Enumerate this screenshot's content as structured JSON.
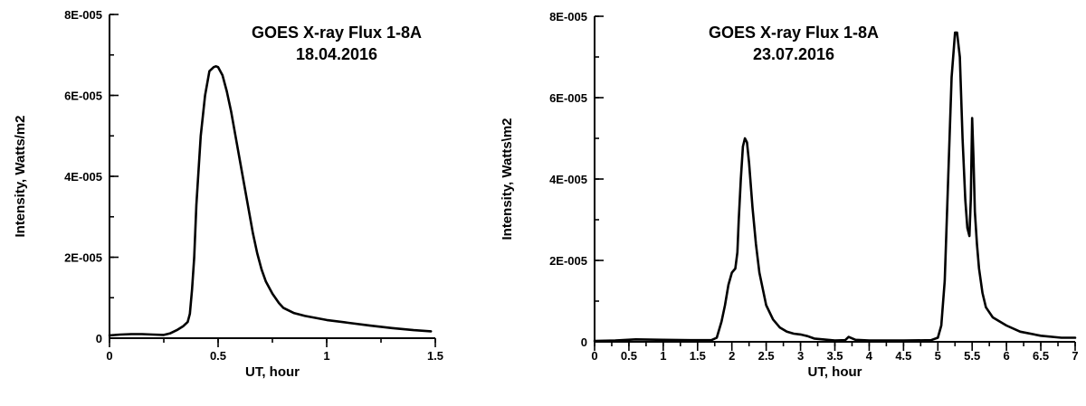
{
  "chart_data": [
    {
      "type": "line",
      "title": "GOES X-ray Flux 1-8A",
      "subtitle": "18.04.2016",
      "xlabel": "UT, hour",
      "ylabel": "Intensity, Watts/m2",
      "xlim": [
        0,
        1.5
      ],
      "ylim": [
        0,
        8e-05
      ],
      "xticks": [
        0,
        0.5,
        1,
        1.5
      ],
      "xtick_labels": [
        "0",
        "0.5",
        "1",
        "1.5"
      ],
      "x_minor_step": 0.25,
      "yticks": [
        0,
        2e-05,
        4e-05,
        6e-05,
        8e-05
      ],
      "ytick_labels": [
        "0",
        "2E-005",
        "4E-005",
        "6E-005",
        "8E-005"
      ],
      "y_minor_step": 1e-05,
      "grid": false,
      "series": [
        {
          "x": [
            0,
            0.05,
            0.1,
            0.15,
            0.2,
            0.25,
            0.28,
            0.31,
            0.34,
            0.36,
            0.37,
            0.38,
            0.39,
            0.4,
            0.42,
            0.44,
            0.46,
            0.48,
            0.49,
            0.5,
            0.52,
            0.54,
            0.56,
            0.58,
            0.6,
            0.62,
            0.64,
            0.66,
            0.68,
            0.7,
            0.72,
            0.75,
            0.78,
            0.8,
            0.85,
            0.9,
            1.0,
            1.1,
            1.2,
            1.3,
            1.4,
            1.48
          ],
          "y": [
            7e-07,
            9e-07,
            1e-06,
            1e-06,
            9e-07,
            8e-07,
            1.2e-06,
            2e-06,
            3e-06,
            4e-06,
            6e-06,
            1.2e-05,
            2e-05,
            3.3e-05,
            5e-05,
            6e-05,
            6.6e-05,
            6.7e-05,
            6.72e-05,
            6.7e-05,
            6.5e-05,
            6.1e-05,
            5.6e-05,
            5e-05,
            4.4e-05,
            3.8e-05,
            3.2e-05,
            2.6e-05,
            2.1e-05,
            1.7e-05,
            1.4e-05,
            1.1e-05,
            8.7e-06,
            7.5e-06,
            6.2e-06,
            5.5e-06,
            4.5e-06,
            3.8e-06,
            3.1e-06,
            2.5e-06,
            2e-06,
            1.7e-06
          ]
        }
      ]
    },
    {
      "type": "line",
      "title": "GOES X-ray Flux 1-8A",
      "subtitle": "23.07.2016",
      "xlabel": "UT, hour",
      "ylabel": "Intensity, Watts\\m2",
      "xlim": [
        0,
        7
      ],
      "ylim": [
        0,
        8e-05
      ],
      "xticks": [
        0,
        0.5,
        1,
        1.5,
        2,
        2.5,
        3,
        3.5,
        4,
        4.5,
        5,
        5.5,
        6,
        6.5,
        7
      ],
      "xtick_labels": [
        "0",
        "0.5",
        "1",
        "1.5",
        "2",
        "2.5",
        "3",
        "3.5",
        "4",
        "4.5",
        "5",
        "5.5",
        "6",
        "6.5",
        "7"
      ],
      "x_minor_step": 0.25,
      "yticks": [
        0,
        2e-05,
        4e-05,
        6e-05,
        8e-05
      ],
      "ytick_labels": [
        "0",
        "2E-005",
        "4E-005",
        "6E-005",
        "8E-005"
      ],
      "y_minor_step": 1e-05,
      "grid": false,
      "series": [
        {
          "x": [
            0,
            0.3,
            0.6,
            1.0,
            1.4,
            1.7,
            1.78,
            1.85,
            1.9,
            1.95,
            2.0,
            2.05,
            2.08,
            2.1,
            2.13,
            2.16,
            2.19,
            2.22,
            2.25,
            2.3,
            2.35,
            2.4,
            2.5,
            2.6,
            2.7,
            2.8,
            2.9,
            3.0,
            3.1,
            3.2,
            3.5,
            3.65,
            3.7,
            3.8,
            4.0,
            4.5,
            4.9,
            5.0,
            5.05,
            5.1,
            5.15,
            5.2,
            5.25,
            5.28,
            5.32,
            5.36,
            5.4,
            5.43,
            5.46,
            5.48,
            5.5,
            5.52,
            5.54,
            5.57,
            5.6,
            5.65,
            5.7,
            5.8,
            6.0,
            6.2,
            6.5,
            6.8,
            7.0
          ],
          "y": [
            2e-07,
            3e-07,
            6e-07,
            5e-07,
            4e-07,
            4e-07,
            1e-06,
            5e-06,
            9e-06,
            1.4e-05,
            1.7e-05,
            1.8e-05,
            2.2e-05,
            3e-05,
            4e-05,
            4.8e-05,
            5e-05,
            4.9e-05,
            4.4e-05,
            3.3e-05,
            2.4e-05,
            1.7e-05,
            9e-06,
            5.5e-06,
            3.5e-06,
            2.5e-06,
            2e-06,
            1.8e-06,
            1.4e-06,
            8e-07,
            3e-07,
            4e-07,
            1.2e-06,
            5e-07,
            3e-07,
            3e-07,
            4e-07,
            1e-06,
            4e-06,
            1.5e-05,
            4e-05,
            6.5e-05,
            7.6e-05,
            7.6e-05,
            7e-05,
            5e-05,
            3.5e-05,
            2.8e-05,
            2.6e-05,
            3.5e-05,
            5.5e-05,
            4.5e-05,
            3.2e-05,
            2.4e-05,
            1.8e-05,
            1.2e-05,
            8.5e-06,
            6e-06,
            4e-06,
            2.5e-06,
            1.5e-06,
            1e-06,
            1e-06
          ]
        }
      ]
    }
  ]
}
